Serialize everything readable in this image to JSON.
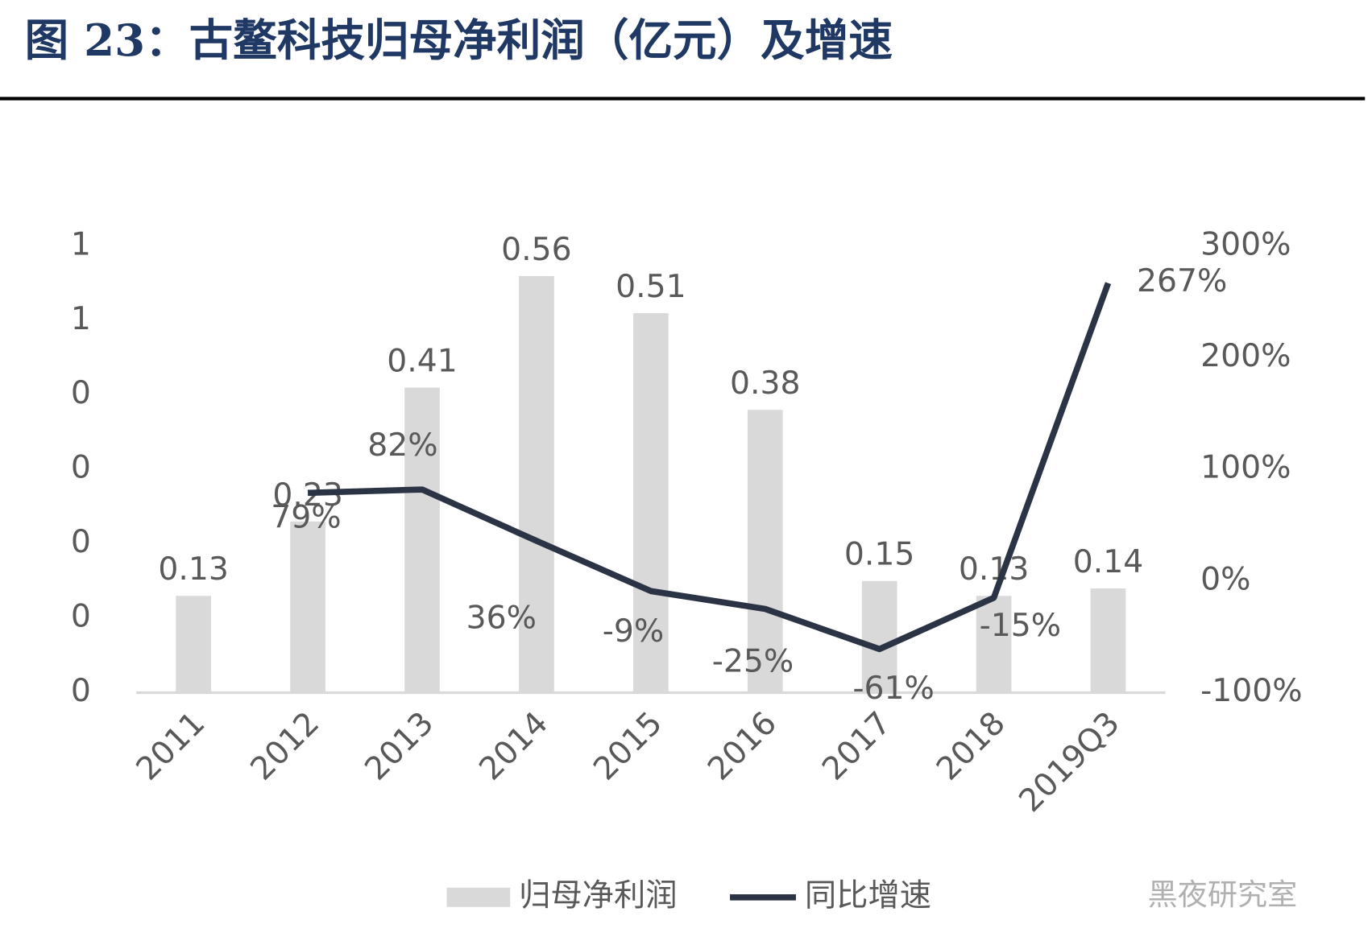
{
  "chart_data": {
    "type": "bar_line",
    "title": "图 23：古鳌科技归母净利润（亿元）及增速",
    "categories": [
      "2011",
      "2012",
      "2013",
      "2014",
      "2015",
      "2016",
      "2017",
      "2018",
      "2019Q3"
    ],
    "series": [
      {
        "name": "归母净利润",
        "type": "bar",
        "color": "#d9d9d9",
        "values": [
          0.13,
          0.23,
          0.41,
          0.56,
          0.51,
          0.38,
          0.15,
          0.13,
          0.14
        ]
      },
      {
        "name": "同比增速",
        "type": "line",
        "axis": "y2",
        "color": "#2b3445",
        "values": [
          null,
          79,
          82,
          36,
          -9,
          -25,
          -61,
          -15,
          267
        ],
        "value_labels": [
          null,
          "79%",
          "82%",
          "36%",
          "-9%",
          "-25%",
          "-61%",
          "-15%",
          "267%"
        ]
      }
    ],
    "ylim": [
      0,
      0.6
    ],
    "yticks": [
      0,
      {
        "value": 0.1,
        "label": "0"
      },
      {
        "value": 0.2,
        "label": "0"
      },
      {
        "value": 0.3,
        "label": "0"
      },
      {
        "value": 0.4,
        "label": "0"
      },
      {
        "value": 0.5,
        "label": "1"
      },
      {
        "value": 0.6,
        "label": "1"
      }
    ],
    "y2lim": [
      -100,
      300
    ],
    "y2ticks": [
      {
        "value": -100,
        "label": "-100%"
      },
      {
        "value": 0,
        "label": "0%"
      },
      {
        "value": 100,
        "label": "100%"
      },
      {
        "value": 200,
        "label": "200%"
      },
      {
        "value": 300,
        "label": "300%"
      }
    ],
    "legend": "bottom",
    "watermark": "黑夜研究室"
  }
}
